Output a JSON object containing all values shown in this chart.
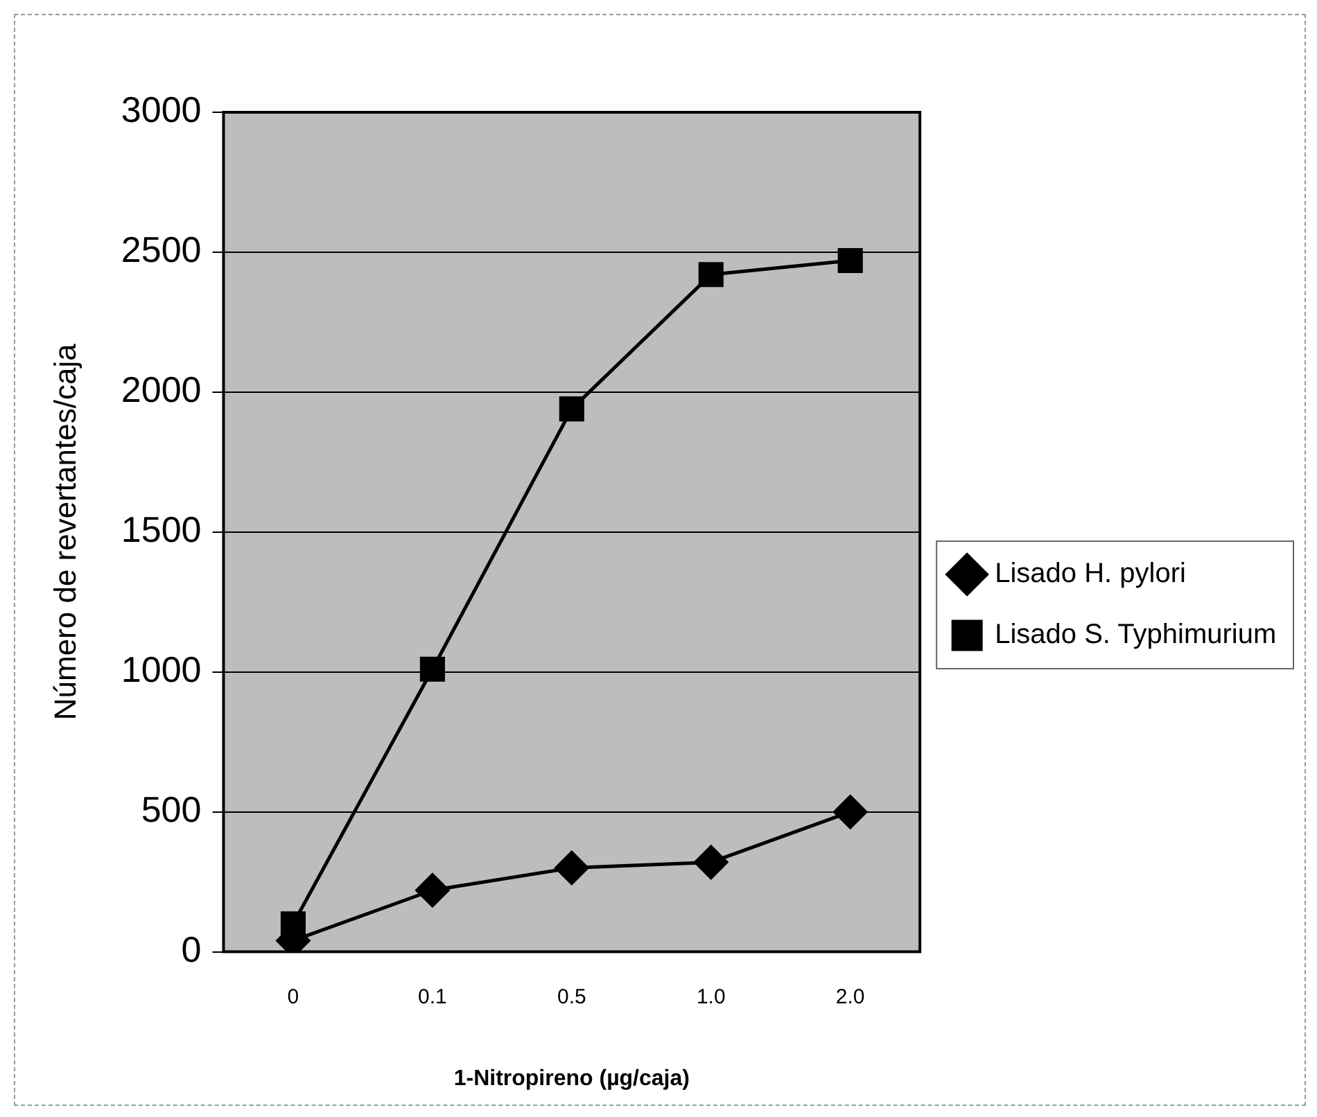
{
  "chart_data": {
    "type": "line",
    "xlabel": "1-Nitropireno (µg/caja)",
    "ylabel": "Número de revertantes/caja",
    "categories": [
      "0",
      "0.1",
      "0.5",
      "1.0",
      "2.0"
    ],
    "series": [
      {
        "name": "Lisado H. pylori",
        "color": "#000000",
        "marker": "diamond",
        "values": [
          40,
          220,
          300,
          320,
          500
        ]
      },
      {
        "name": "Lisado S. Typhimurium",
        "color": "#000000",
        "marker": "square",
        "values": [
          100,
          1010,
          1940,
          2420,
          2470
        ]
      }
    ],
    "ylim": [
      0,
      3000
    ],
    "yticks": [
      0,
      500,
      1000,
      1500,
      2000,
      2500,
      3000
    ],
    "grid": "y",
    "legend": "right",
    "line_style": "solid"
  }
}
